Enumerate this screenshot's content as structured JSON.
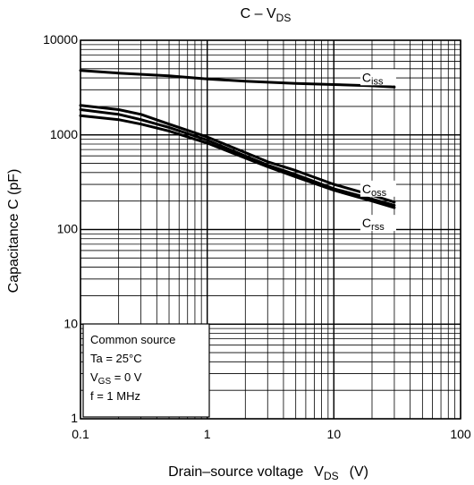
{
  "chart_data": {
    "type": "line",
    "title": {
      "main": "C – V",
      "sub": "DS"
    },
    "xlabel": {
      "main": "Drain–source voltage",
      "sym": "V",
      "sub": "DS",
      "unit": "(V)"
    },
    "ylabel": "Capacitance   C   (pF)",
    "x_scale": "log",
    "y_scale": "log",
    "xlim": [
      0.1,
      100
    ],
    "ylim": [
      1,
      10000
    ],
    "grid": true,
    "x_ticks": [
      {
        "value": 0.1,
        "label": "0.1"
      },
      {
        "value": 1,
        "label": "1"
      },
      {
        "value": 10,
        "label": "10"
      },
      {
        "value": 100,
        "label": "100"
      }
    ],
    "y_ticks": [
      {
        "value": 1,
        "label": "1"
      },
      {
        "value": 10,
        "label": "10"
      },
      {
        "value": 100,
        "label": "100"
      },
      {
        "value": 1000,
        "label": "1000"
      },
      {
        "value": 10000,
        "label": "10000"
      }
    ],
    "series": [
      {
        "name": "Ciss",
        "label_main": "C",
        "label_sub": "iss",
        "points": [
          [
            0.1,
            4800
          ],
          [
            0.2,
            4500
          ],
          [
            0.5,
            4200
          ],
          [
            1,
            3900
          ],
          [
            2,
            3700
          ],
          [
            5,
            3500
          ],
          [
            10,
            3400
          ],
          [
            20,
            3300
          ],
          [
            30,
            3200
          ]
        ]
      },
      {
        "name": "Coss",
        "label_main": "C",
        "label_sub": "oss",
        "points": [
          [
            0.1,
            2050
          ],
          [
            0.2,
            1850
          ],
          [
            0.3,
            1650
          ],
          [
            0.5,
            1300
          ],
          [
            1,
            950
          ],
          [
            2,
            650
          ],
          [
            3,
            520
          ],
          [
            5,
            420
          ],
          [
            10,
            300
          ],
          [
            20,
            230
          ],
          [
            30,
            195
          ]
        ]
      },
      {
        "name": "Crss_a",
        "points": [
          [
            0.1,
            1850
          ],
          [
            0.2,
            1650
          ],
          [
            0.3,
            1450
          ],
          [
            0.5,
            1200
          ],
          [
            1,
            880
          ],
          [
            2,
            600
          ],
          [
            3,
            480
          ],
          [
            5,
            380
          ],
          [
            10,
            270
          ],
          [
            20,
            210
          ],
          [
            30,
            180
          ]
        ]
      },
      {
        "name": "Crss",
        "label_main": "C",
        "label_sub": "rss",
        "points": [
          [
            0.1,
            1600
          ],
          [
            0.2,
            1450
          ],
          [
            0.3,
            1300
          ],
          [
            0.5,
            1100
          ],
          [
            1,
            820
          ],
          [
            2,
            570
          ],
          [
            3,
            460
          ],
          [
            5,
            360
          ],
          [
            10,
            260
          ],
          [
            20,
            200
          ],
          [
            30,
            170
          ]
        ]
      }
    ],
    "legend": {
      "placement": "bottom-left",
      "lines": [
        {
          "text": "Common source"
        },
        {
          "text": "Ta = 25°C"
        },
        {
          "sym": "V",
          "sub": "GS",
          "rest": " = 0 V"
        },
        {
          "text": "f = 1 MHz"
        }
      ]
    }
  }
}
